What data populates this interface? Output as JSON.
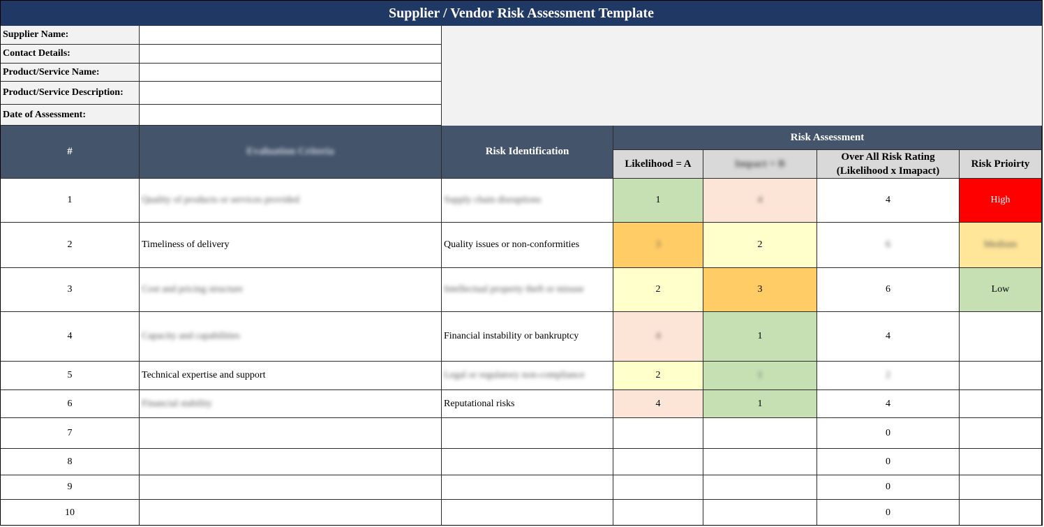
{
  "title": "Supplier / Vendor Risk Assessment Template",
  "info_fields": [
    {
      "label": "Supplier Name:",
      "value": ""
    },
    {
      "label": "Contact Details:",
      "value": ""
    },
    {
      "label": "Product/Service Name:",
      "value": ""
    },
    {
      "label": "Product/Service Description:",
      "value": ""
    },
    {
      "label": "Date of Assessment:",
      "value": ""
    }
  ],
  "columns": {
    "number": "#",
    "criteria": "Evaluation Criteria",
    "risk_identification": "Risk Identification",
    "risk_assessment": "Risk Assessment",
    "likelihood": "Likelihood = A",
    "impact": "Impact = B",
    "overall_line1": "Over All Risk Rating",
    "overall_line2": "(Likelihood x Imapact)",
    "priority": "Risk Prioirty"
  },
  "rows": [
    {
      "num": "1",
      "criteria": "Quality of products or services provided",
      "risk": "Supply chain disruptions",
      "likelihood": "1",
      "impact": "4",
      "overall": "4",
      "priority": "High"
    },
    {
      "num": "2",
      "criteria": "Timeliness of delivery",
      "risk": "Quality issues or non-conformities",
      "likelihood": "3",
      "impact": "2",
      "overall": "6",
      "priority": "Medium"
    },
    {
      "num": "3",
      "criteria": "Cost and pricing structure",
      "risk": "Intellectual property theft or misuse",
      "likelihood": "2",
      "impact": "3",
      "overall": "6",
      "priority": "Low"
    },
    {
      "num": "4",
      "criteria": "Capacity and capabilities",
      "risk": "Financial instability or bankruptcy",
      "likelihood": "4",
      "impact": "1",
      "overall": "4",
      "priority": ""
    },
    {
      "num": "5",
      "criteria": "Technical expertise and support",
      "risk": "Legal or regulatory non-compliance",
      "likelihood": "2",
      "impact": "1",
      "overall": "2",
      "priority": ""
    },
    {
      "num": "6",
      "criteria": "Financial stability",
      "risk": "Reputational risks",
      "likelihood": "4",
      "impact": "1",
      "overall": "4",
      "priority": ""
    },
    {
      "num": "7",
      "criteria": "",
      "risk": "",
      "likelihood": "",
      "impact": "",
      "overall": "0",
      "priority": ""
    },
    {
      "num": "8",
      "criteria": "",
      "risk": "",
      "likelihood": "",
      "impact": "",
      "overall": "0",
      "priority": ""
    },
    {
      "num": "9",
      "criteria": "",
      "risk": "",
      "likelihood": "",
      "impact": "",
      "overall": "0",
      "priority": ""
    },
    {
      "num": "10",
      "criteria": "",
      "risk": "",
      "likelihood": "",
      "impact": "",
      "overall": "0",
      "priority": ""
    }
  ],
  "colors": {
    "title_bg": "#203864",
    "header_bg": "#44546a",
    "subheader_bg": "#d9d9d9",
    "green": "#c6e0b4",
    "peach": "#fce4d6",
    "light_yellow": "#ffffcc",
    "orange": "#ffcc66",
    "red": "#ff0000",
    "medium_yellow": "#ffe699"
  }
}
